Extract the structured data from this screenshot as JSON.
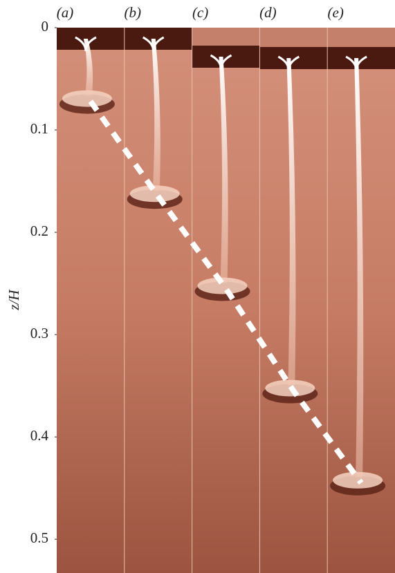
{
  "chart_data": {
    "type": "line",
    "ylabel": "z/H",
    "categories": [
      "(a)",
      "(b)",
      "(c)",
      "(d)",
      "(e)"
    ],
    "values": [
      0.072,
      0.165,
      0.255,
      0.355,
      0.445
    ],
    "color": "#ffffff",
    "ylim": [
      0,
      0.533
    ],
    "yticks": [
      0,
      0.1,
      0.2,
      0.3,
      0.4,
      0.5
    ]
  }
}
